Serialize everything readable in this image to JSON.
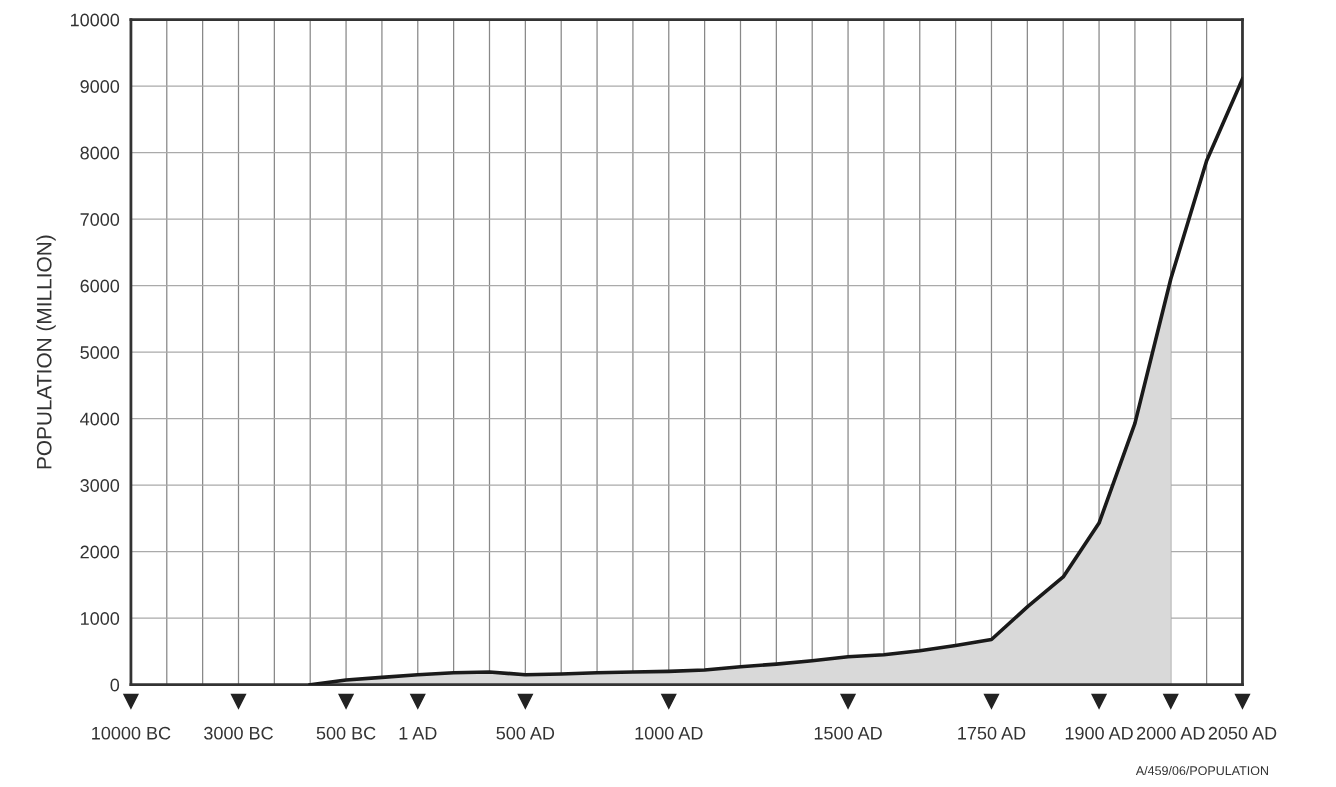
{
  "chart_data": {
    "type": "line",
    "ylabel": "POPULATION (MILLION)",
    "categories": [
      "10000 BC",
      null,
      null,
      "3000 BC",
      null,
      null,
      "500 BC",
      null,
      "1 AD",
      null,
      null,
      "500 AD",
      null,
      null,
      null,
      "1000 AD",
      null,
      null,
      null,
      null,
      "1500 AD",
      null,
      null,
      null,
      "1750 AD",
      null,
      null,
      "1900 AD",
      null,
      "2000 AD",
      null,
      "2050 AD"
    ],
    "series": [
      {
        "type": "area",
        "color": "#d9d9d9",
        "values": [
          null,
          null,
          null,
          null,
          null,
          0,
          70,
          110,
          150,
          180,
          190,
          150,
          160,
          180,
          190,
          200,
          220,
          270,
          310,
          360,
          420,
          450,
          510,
          590,
          680,
          1170,
          1620,
          2430,
          3930,
          6100,
          null,
          null
        ]
      },
      {
        "color": "#1a1a1a",
        "values": [
          null,
          null,
          null,
          null,
          null,
          0,
          70,
          110,
          150,
          180,
          190,
          150,
          160,
          180,
          190,
          200,
          220,
          270,
          310,
          360,
          420,
          450,
          510,
          590,
          680,
          1170,
          1620,
          2430,
          3930,
          6100,
          7880,
          9110
        ]
      }
    ],
    "ylim": [
      0,
      10000
    ],
    "yticks": [
      0,
      1000,
      2000,
      3000,
      4000,
      5000,
      6000,
      7000,
      8000,
      9000,
      10000
    ],
    "grid": true,
    "marker": "none",
    "line_style": "solid",
    "annotations": [
      "A/459/06/POPULATION"
    ]
  }
}
